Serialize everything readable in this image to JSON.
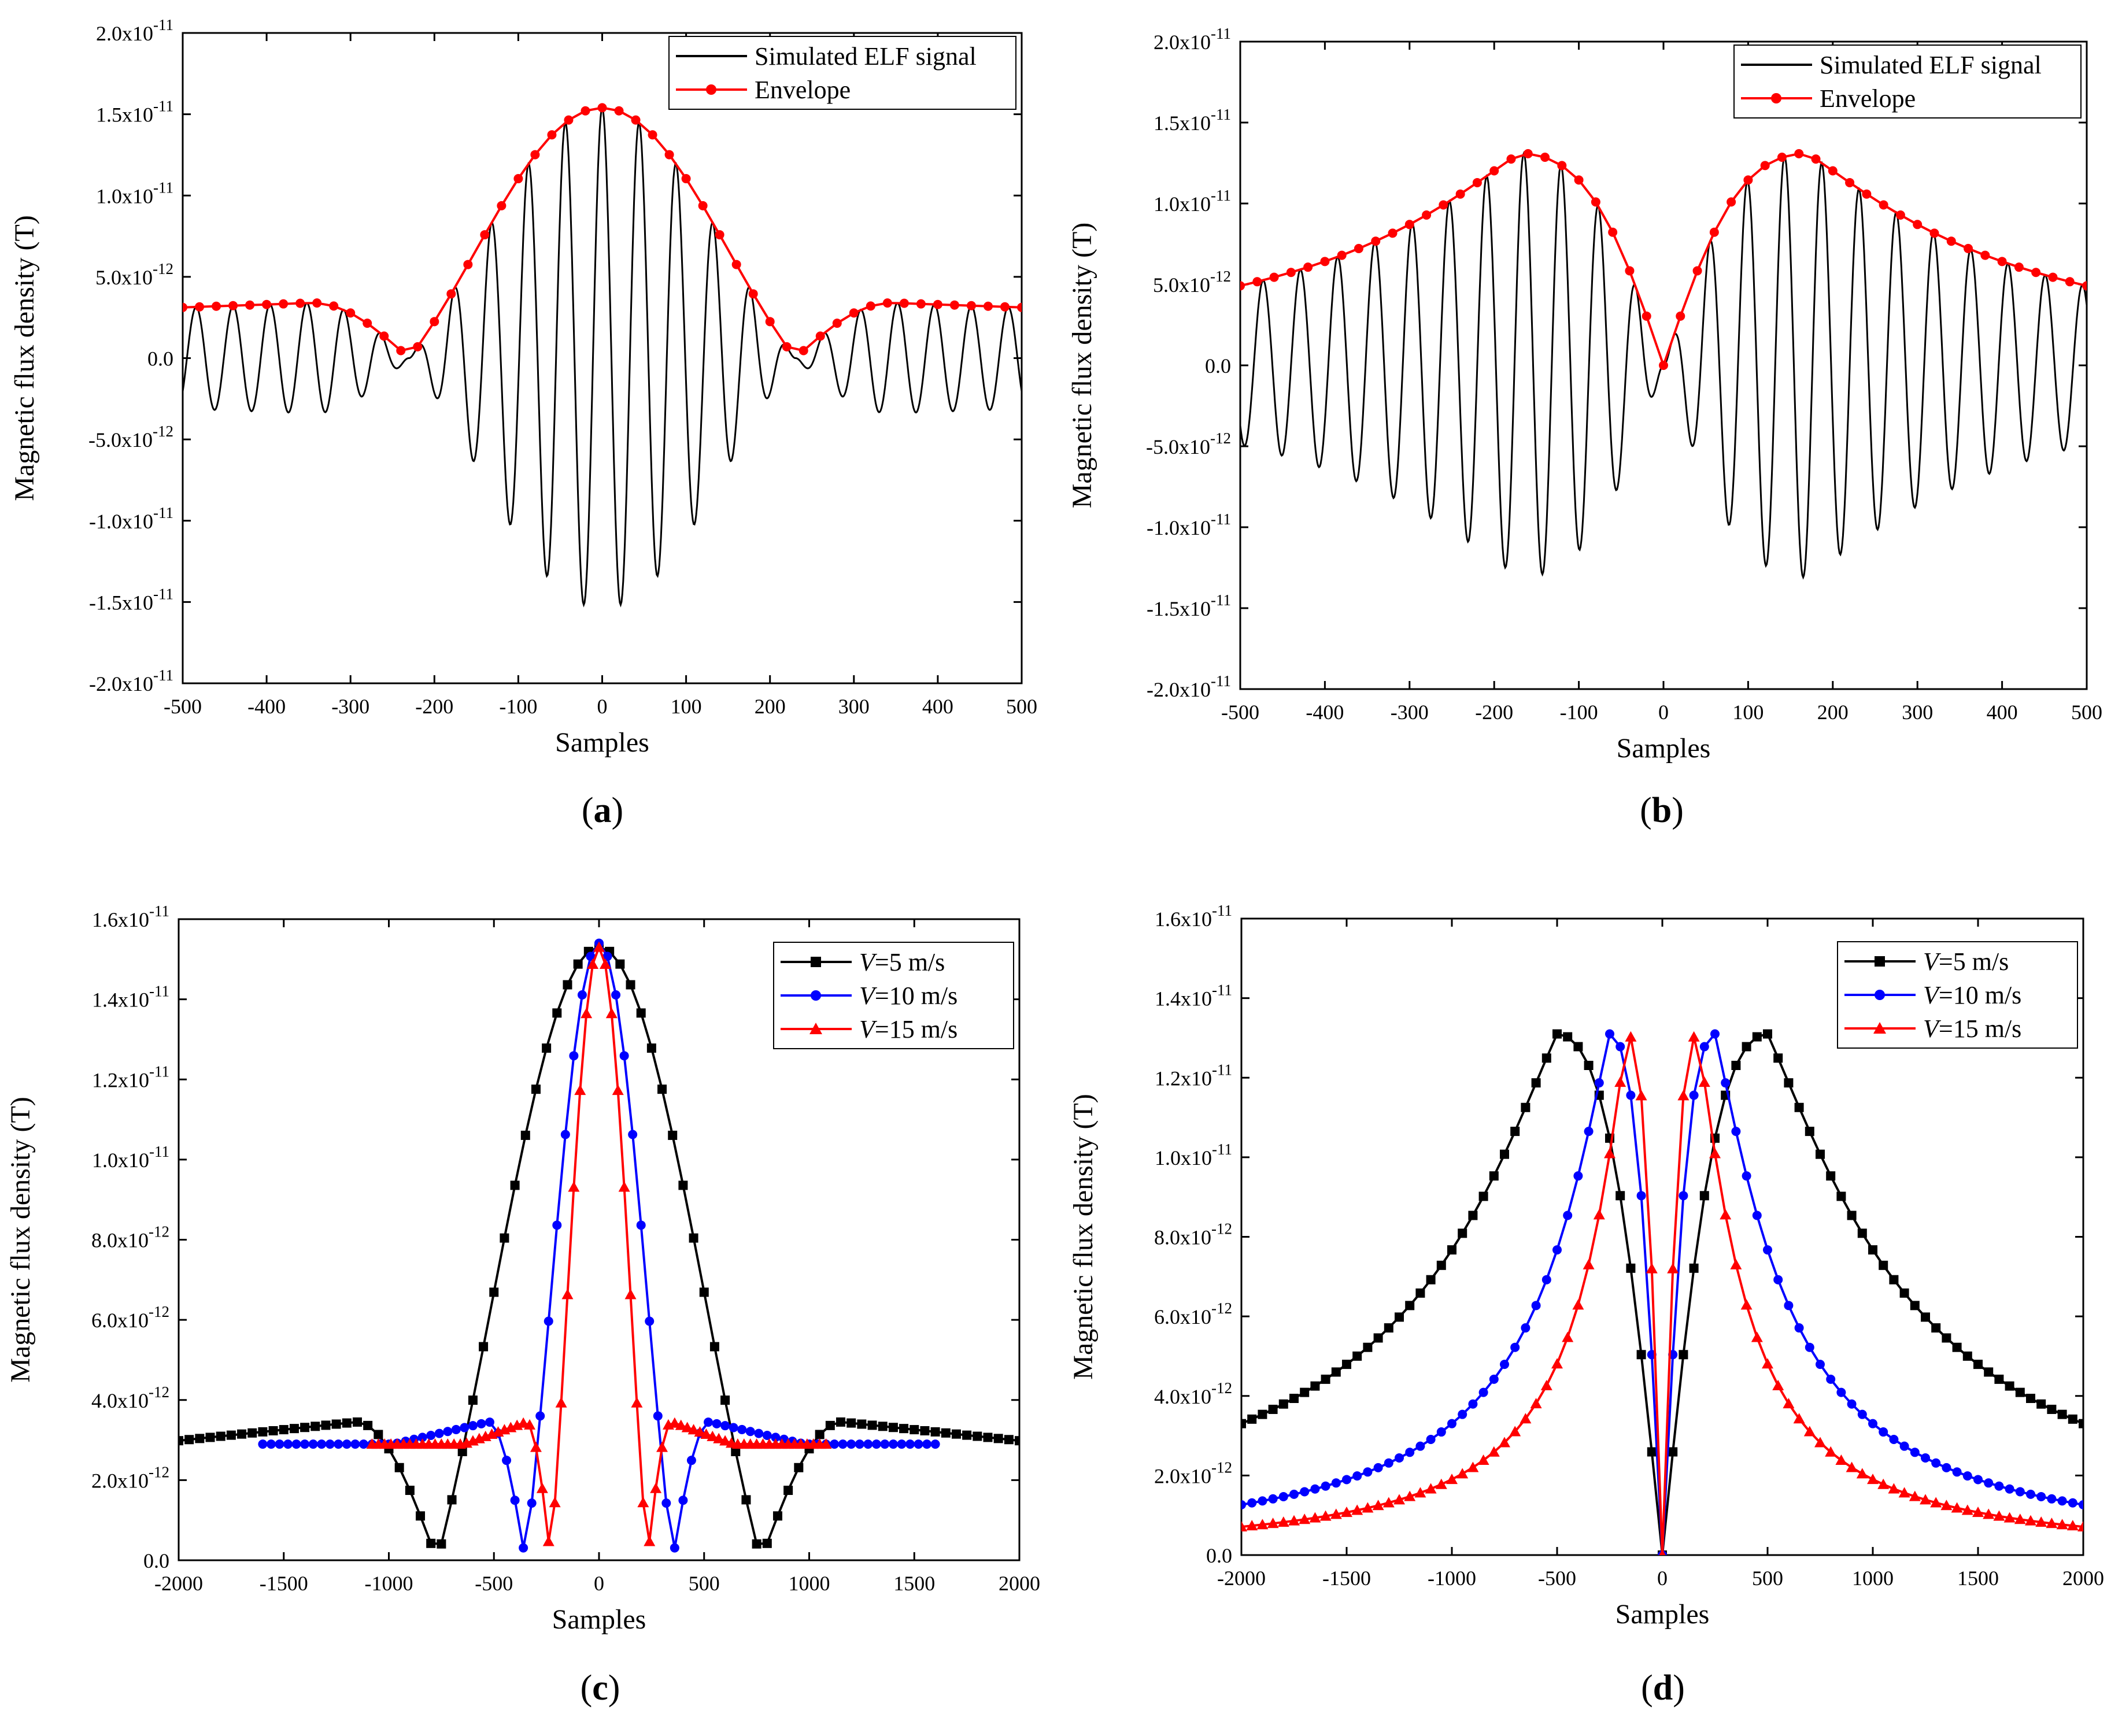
{
  "chart_data": [
    {
      "id": "a",
      "type": "line",
      "panel_label": "a",
      "xlabel": "Samples",
      "ylabel": "Magnetic flux density (T)",
      "xlim": [
        -500,
        500
      ],
      "ylim": [
        -2e-11,
        2e-11
      ],
      "xticks": [
        -500,
        -400,
        -300,
        -200,
        -100,
        0,
        100,
        200,
        300,
        400,
        500
      ],
      "yticks": [
        {
          "v": -2e-11,
          "m": "-2.0x10",
          "e": "-11"
        },
        {
          "v": -1.5e-11,
          "m": "-1.5x10",
          "e": "-11"
        },
        {
          "v": -1e-11,
          "m": "-1.0x10",
          "e": "-11"
        },
        {
          "v": -5e-12,
          "m": "-5.0x10",
          "e": "-12"
        },
        {
          "v": 0,
          "m": "0.0",
          "e": ""
        },
        {
          "v": 5e-12,
          "m": "5.0x10",
          "e": "-12"
        },
        {
          "v": 1e-11,
          "m": "1.0x10",
          "e": "-11"
        },
        {
          "v": 1.5e-11,
          "m": "1.5x10",
          "e": "-11"
        },
        {
          "v": 2e-11,
          "m": "2.0x10",
          "e": "-11"
        }
      ],
      "legend": {
        "position": "top-right",
        "entries": [
          "Simulated ELF signal",
          "Envelope"
        ]
      },
      "series": [
        {
          "name": "Simulated ELF signal",
          "color": "#000000",
          "marker": "none",
          "model": {
            "kind": "sinc",
            "peak": 1.54e-11,
            "half_width": 230,
            "tail_amplitude": 3.4e-12,
            "period": 44,
            "phase": "cos"
          },
          "x_step": 1
        },
        {
          "name": "Envelope",
          "color": "#ff0000",
          "marker": "circle",
          "model": {
            "kind": "sinc",
            "peak": 1.54e-11,
            "half_width": 230,
            "tail_amplitude": 3.4e-12
          },
          "x_step": 20
        }
      ]
    },
    {
      "id": "b",
      "type": "line",
      "panel_label": "b",
      "xlabel": "Samples",
      "ylabel": "Magnetic flux density (T)",
      "xlim": [
        -500,
        500
      ],
      "ylim": [
        -2e-11,
        2e-11
      ],
      "xticks": [
        -500,
        -400,
        -300,
        -200,
        -100,
        0,
        100,
        200,
        300,
        400,
        500
      ],
      "yticks": [
        {
          "v": -2e-11,
          "m": "-2.0x10",
          "e": "-11"
        },
        {
          "v": -1.5e-11,
          "m": "-1.5x10",
          "e": "-11"
        },
        {
          "v": -1e-11,
          "m": "-1.0x10",
          "e": "-11"
        },
        {
          "v": -5e-12,
          "m": "-5.0x10",
          "e": "-12"
        },
        {
          "v": 0,
          "m": "0.0",
          "e": ""
        },
        {
          "v": 5e-12,
          "m": "5.0x10",
          "e": "-12"
        },
        {
          "v": 1e-11,
          "m": "1.0x10",
          "e": "-11"
        },
        {
          "v": 1.5e-11,
          "m": "1.5x10",
          "e": "-11"
        },
        {
          "v": 2e-11,
          "m": "2.0x10",
          "e": "-11"
        }
      ],
      "legend": {
        "position": "top-right",
        "entries": [
          "Simulated ELF signal",
          "Envelope"
        ]
      },
      "series": [
        {
          "name": "Simulated ELF signal",
          "color": "#000000",
          "marker": "none",
          "model": {
            "kind": "dipole",
            "peak": 1.31e-11,
            "peak_at": 170,
            "period": 44,
            "phase": "sin"
          },
          "x_step": 1
        },
        {
          "name": "Envelope",
          "color": "#ff0000",
          "marker": "circle",
          "model": {
            "kind": "dipole",
            "peak": 1.31e-11,
            "peak_at": 170
          },
          "x_step": 20
        }
      ]
    },
    {
      "id": "c",
      "type": "line",
      "panel_label": "c",
      "xlabel": "Samples",
      "ylabel": "Magnetic flux density (T)",
      "xlim": [
        -2000,
        2000
      ],
      "ylim": [
        0,
        1.6e-11
      ],
      "xticks": [
        -2000,
        -1500,
        -1000,
        -500,
        0,
        500,
        1000,
        1500,
        2000
      ],
      "yticks": [
        {
          "v": 0,
          "m": "0.0",
          "e": ""
        },
        {
          "v": 2e-12,
          "m": "2.0x10",
          "e": "-12"
        },
        {
          "v": 4e-12,
          "m": "4.0x10",
          "e": "-12"
        },
        {
          "v": 6e-12,
          "m": "6.0x10",
          "e": "-12"
        },
        {
          "v": 8e-12,
          "m": "8.0x10",
          "e": "-12"
        },
        {
          "v": 1e-11,
          "m": "1.0x10",
          "e": "-11"
        },
        {
          "v": 1.2e-11,
          "m": "1.2x10",
          "e": "-11"
        },
        {
          "v": 1.4e-11,
          "m": "1.4x10",
          "e": "-11"
        },
        {
          "v": 1.6e-11,
          "m": "1.6x10",
          "e": "-11"
        }
      ],
      "legend": {
        "position": "top-right",
        "entries": [
          "V=5 m/s",
          "V=10 m/s",
          "V=15 m/s"
        ]
      },
      "series": [
        {
          "name_var": "V",
          "name_rest": "=5 m/s",
          "color": "#000000",
          "marker": "square",
          "model": {
            "kind": "sinc",
            "peak": 1.53e-11,
            "half_width": 770,
            "tail_amplitude": 3.45e-12
          },
          "x_range": [
            -2000,
            2000
          ],
          "x_step": 50
        },
        {
          "name_var": "V",
          "name_rest": "=10 m/s",
          "color": "#0000ff",
          "marker": "circle",
          "model": {
            "kind": "sinc",
            "peak": 1.54e-11,
            "half_width": 350,
            "tail_amplitude": 3.45e-12
          },
          "x_range": [
            -1600,
            1600
          ],
          "x_step": 40
        },
        {
          "name_var": "V",
          "name_rest": "=15 m/s",
          "color": "#ff0000",
          "marker": "triangle",
          "model": {
            "kind": "sinc",
            "peak": 1.53e-11,
            "half_width": 230,
            "tail_amplitude": 3.45e-12
          },
          "x_range": [
            -1080,
            1080
          ],
          "x_step": 30
        }
      ]
    },
    {
      "id": "d",
      "type": "line",
      "panel_label": "d",
      "xlabel": "Samples",
      "ylabel": "Magnetic flux density (T)",
      "xlim": [
        -2000,
        2000
      ],
      "ylim": [
        0,
        1.6e-11
      ],
      "xticks": [
        -2000,
        -1500,
        -1000,
        -500,
        0,
        500,
        1000,
        1500,
        2000
      ],
      "yticks": [
        {
          "v": 0,
          "m": "0.0",
          "e": ""
        },
        {
          "v": 2e-12,
          "m": "2.0x10",
          "e": "-12"
        },
        {
          "v": 4e-12,
          "m": "4.0x10",
          "e": "-12"
        },
        {
          "v": 6e-12,
          "m": "6.0x10",
          "e": "-12"
        },
        {
          "v": 8e-12,
          "m": "8.0x10",
          "e": "-12"
        },
        {
          "v": 1e-11,
          "m": "1.0x10",
          "e": "-11"
        },
        {
          "v": 1.2e-11,
          "m": "1.2x10",
          "e": "-11"
        },
        {
          "v": 1.4e-11,
          "m": "1.4x10",
          "e": "-11"
        },
        {
          "v": 1.6e-11,
          "m": "1.6x10",
          "e": "-11"
        }
      ],
      "legend": {
        "position": "top-right",
        "entries": [
          "V=5 m/s",
          "V=10 m/s",
          "V=15 m/s"
        ]
      },
      "series": [
        {
          "name_var": "V",
          "name_rest": "=5 m/s",
          "color": "#000000",
          "marker": "square",
          "model": {
            "kind": "dipole",
            "peak": 1.31e-11,
            "peak_at": 500,
            "floor": 0
          },
          "x_range": [
            -2000,
            2000
          ],
          "x_step": 50
        },
        {
          "name_var": "V",
          "name_rest": "=10 m/s",
          "color": "#0000ff",
          "marker": "circle",
          "model": {
            "kind": "dipole",
            "peak": 1.31e-11,
            "peak_at": 250,
            "floor": 0
          },
          "x_range": [
            -2000,
            2000
          ],
          "x_step": 50
        },
        {
          "name_var": "V",
          "name_rest": "=15 m/s",
          "color": "#ff0000",
          "marker": "triangle",
          "model": {
            "kind": "dipole",
            "peak": 1.31e-11,
            "peak_at": 167,
            "floor": 0
          },
          "x_range": [
            -2000,
            2000
          ],
          "x_step": 50
        }
      ]
    }
  ]
}
